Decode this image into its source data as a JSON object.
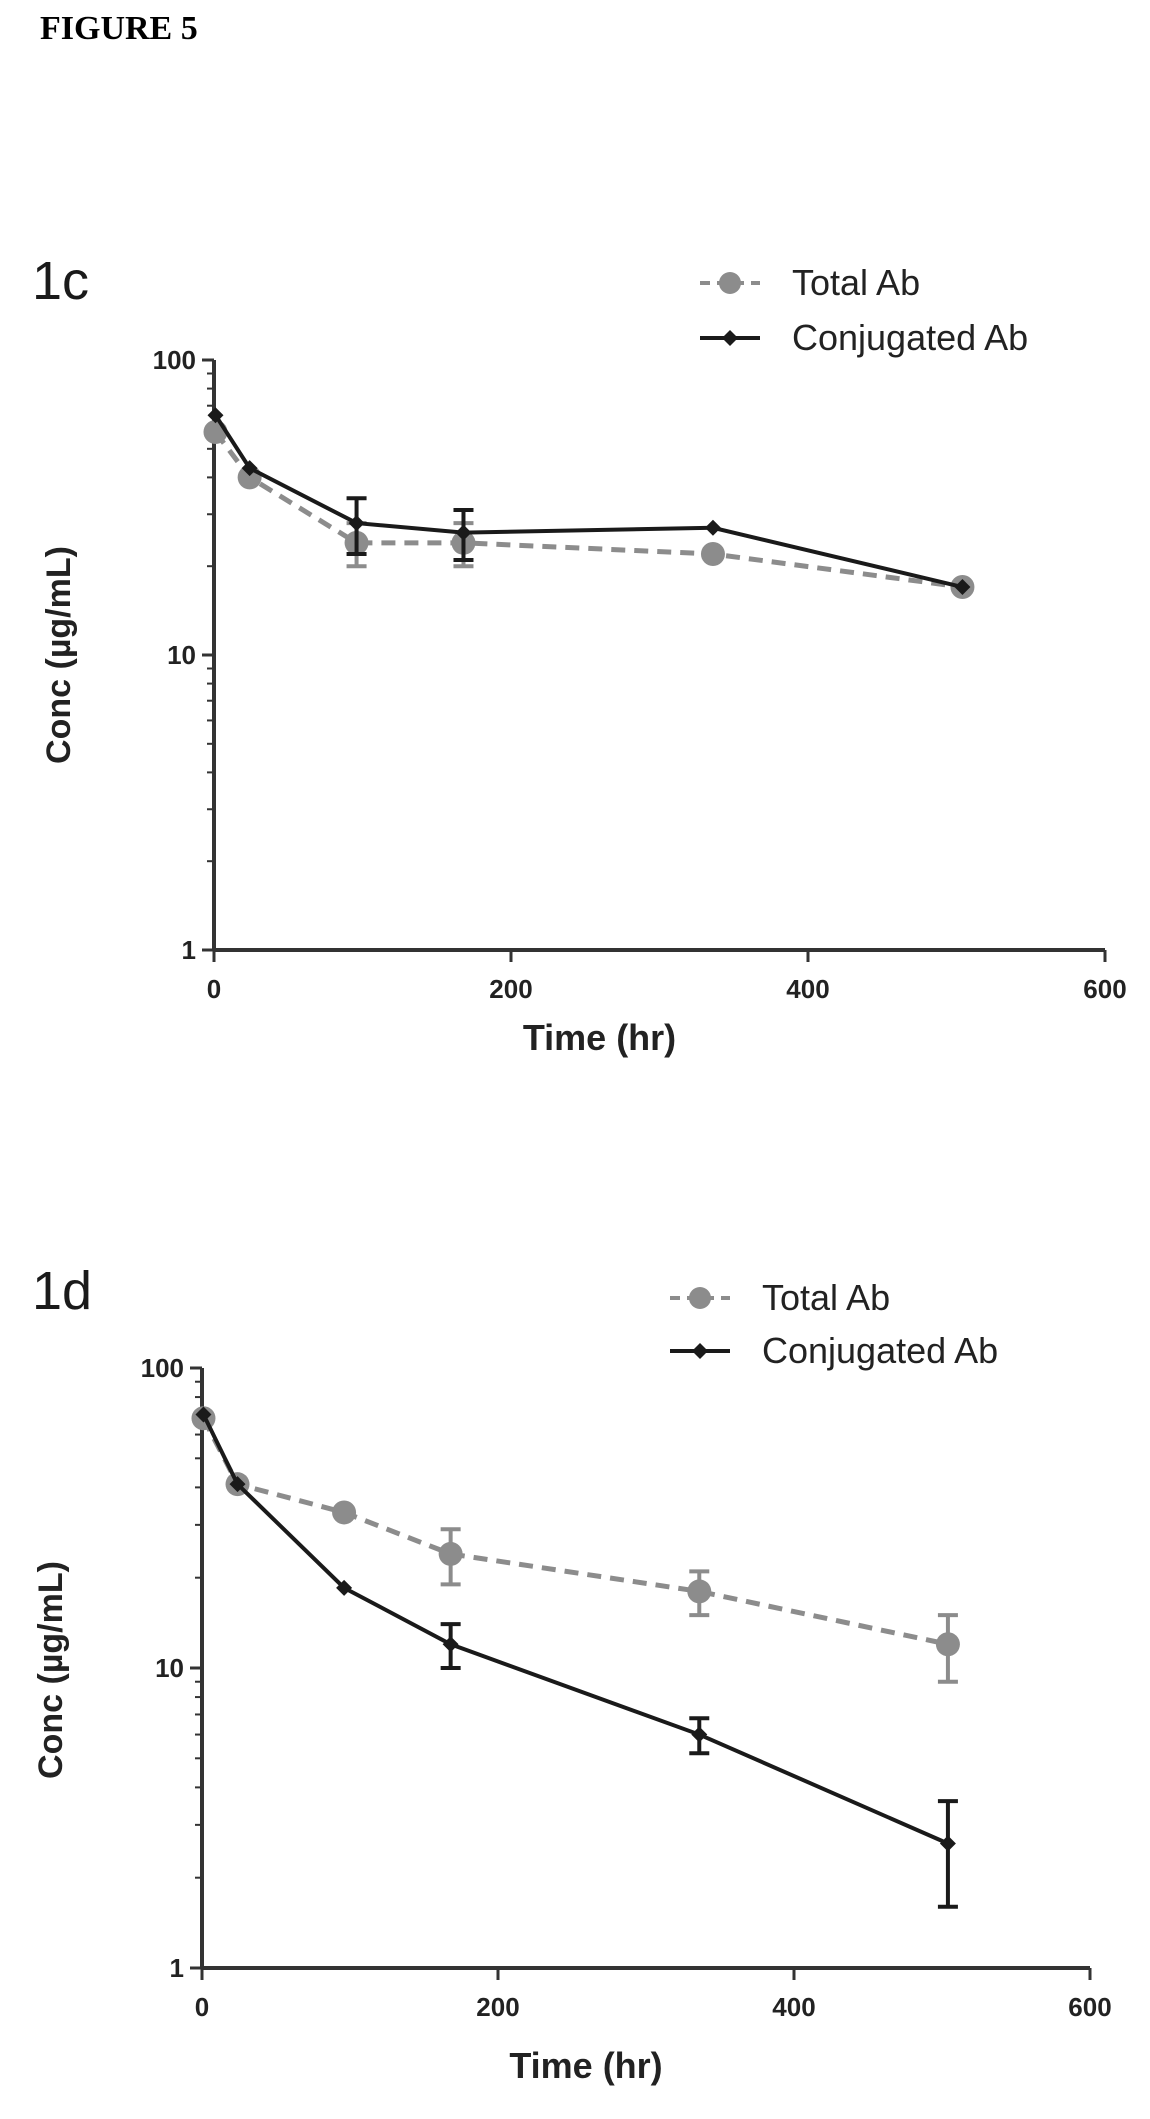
{
  "figure_title": "FIGURE 5",
  "chart_data": [
    {
      "type": "line",
      "panel_label": "1c",
      "xlabel": "Time (hr)",
      "ylabel": "Conc (µg/mL)",
      "xlim": [
        0,
        600
      ],
      "ylim": [
        1,
        100
      ],
      "yscale": "log",
      "xticks": [
        0,
        200,
        400,
        600
      ],
      "yticks": [
        1,
        10,
        100
      ],
      "grid": false,
      "legend": "top-right",
      "series": [
        {
          "name": "Total Ab",
          "style": "dashed",
          "marker": "circle",
          "color": "#8c8c8c",
          "x": [
            1,
            24,
            96,
            168,
            336,
            504
          ],
          "y": [
            57,
            40,
            24,
            24,
            22,
            17
          ],
          "err": [
            0,
            0,
            4,
            4,
            0,
            0
          ]
        },
        {
          "name": "Conjugated Ab",
          "style": "solid",
          "marker": "diamond",
          "color": "#1a1a1a",
          "x": [
            1,
            24,
            96,
            168,
            336,
            504
          ],
          "y": [
            65,
            43,
            28,
            26,
            27,
            17
          ],
          "err": [
            0,
            0,
            6,
            5,
            0,
            0
          ]
        }
      ]
    },
    {
      "type": "line",
      "panel_label": "1d",
      "xlabel": "Time (hr)",
      "ylabel": "Conc (µg/mL)",
      "xlim": [
        0,
        600
      ],
      "ylim": [
        1,
        100
      ],
      "yscale": "log",
      "xticks": [
        0,
        200,
        400,
        600
      ],
      "yticks": [
        1,
        10,
        100
      ],
      "grid": false,
      "legend": "top-right",
      "series": [
        {
          "name": "Total Ab",
          "style": "dashed",
          "marker": "circle",
          "color": "#8c8c8c",
          "x": [
            1,
            24,
            96,
            168,
            336,
            504
          ],
          "y": [
            68,
            41,
            33,
            24,
            18,
            12
          ],
          "err": [
            0,
            0,
            0,
            5,
            3,
            3
          ]
        },
        {
          "name": "Conjugated Ab",
          "style": "solid",
          "marker": "diamond",
          "color": "#1a1a1a",
          "x": [
            1,
            24,
            96,
            168,
            336,
            504
          ],
          "y": [
            70,
            41,
            18.5,
            12,
            6,
            2.6
          ],
          "err": [
            0,
            0,
            0,
            2,
            0.8,
            1.0
          ]
        }
      ]
    }
  ]
}
